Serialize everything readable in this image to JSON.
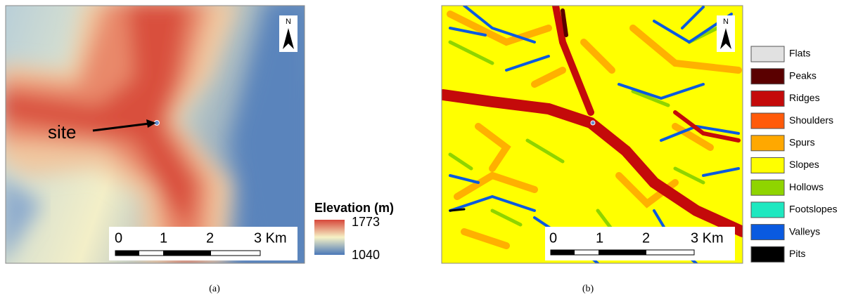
{
  "panel_a": {
    "site_label": "site",
    "north": "N",
    "scale_bar": [
      "0",
      "1",
      "2",
      "3 Km"
    ],
    "legend": {
      "title": "Elevation (m)",
      "max": 1773,
      "min": 1040
    },
    "caption": "(a)"
  },
  "panel_b": {
    "north": "N",
    "scale_bar": [
      "0",
      "1",
      "2",
      "3 Km"
    ],
    "legend": [
      {
        "label": "Flats",
        "color": "#e1e1e1"
      },
      {
        "label": "Peaks",
        "color": "#5a0000"
      },
      {
        "label": "Ridges",
        "color": "#c40a0a"
      },
      {
        "label": "Shoulders",
        "color": "#ff5a0a"
      },
      {
        "label": "Spurs",
        "color": "#ffa800"
      },
      {
        "label": "Slopes",
        "color": "#ffff00"
      },
      {
        "label": "Hollows",
        "color": "#8fd400"
      },
      {
        "label": "Footslopes",
        "color": "#1ee8c0"
      },
      {
        "label": "Valleys",
        "color": "#0a5ae0"
      },
      {
        "label": "Pits",
        "color": "#000000"
      }
    ],
    "caption": "(b)"
  }
}
